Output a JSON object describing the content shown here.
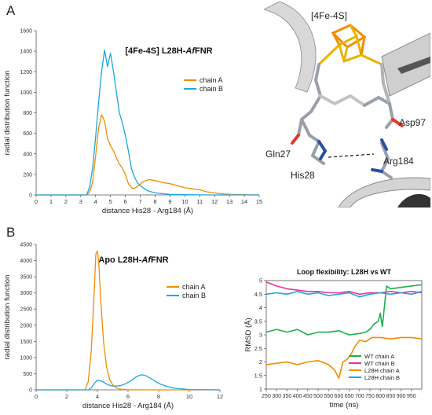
{
  "panels": {
    "a": "A",
    "b": "B"
  },
  "structure": {
    "labels": [
      "[4Fe-4S]",
      "Asp97",
      "Gln27",
      "His28",
      "Arg184"
    ]
  },
  "chart_data": [
    {
      "type": "line",
      "title_plain": "[4Fe-4S] L28H-",
      "title_italic": "Af",
      "title_end": "FNR",
      "xlabel": "distance His28 - Arg184 (Å)",
      "ylabel": "radial distribution function",
      "xlim": [
        0,
        15
      ],
      "ylim": [
        0,
        1600
      ],
      "xticks": [
        "0",
        "1",
        "2",
        "3",
        "4",
        "5",
        "6",
        "7",
        "8",
        "9",
        "10",
        "11",
        "12",
        "13",
        "14",
        "15"
      ],
      "yticks": [
        "0",
        "200",
        "400",
        "600",
        "800",
        "1000",
        "1200",
        "1400",
        "1600"
      ],
      "legend_position": "center-right",
      "series": [
        {
          "name": "chain A",
          "color": "#f28c00",
          "x": [
            0,
            3.4,
            3.6,
            3.8,
            4.0,
            4.2,
            4.4,
            4.6,
            4.8,
            5.0,
            5.2,
            5.4,
            5.6,
            5.8,
            6.0,
            6.2,
            6.5,
            6.8,
            7.2,
            7.6,
            8.0,
            8.5,
            9.0,
            9.5,
            10.0,
            10.5,
            11.0,
            11.5,
            12.0,
            12.5,
            13.0,
            13.5,
            14.0,
            14.5,
            15.0
          ],
          "y": [
            0,
            0,
            30,
            120,
            380,
            650,
            780,
            720,
            550,
            480,
            430,
            360,
            300,
            260,
            200,
            110,
            60,
            80,
            130,
            150,
            140,
            120,
            110,
            90,
            70,
            60,
            50,
            30,
            20,
            10,
            5,
            3,
            2,
            1,
            0
          ]
        },
        {
          "name": "chain B",
          "color": "#1aa7e0",
          "x": [
            0,
            3.4,
            3.6,
            3.8,
            4.0,
            4.2,
            4.4,
            4.6,
            4.8,
            5.0,
            5.2,
            5.4,
            5.6,
            5.8,
            6.0,
            6.2,
            6.4,
            6.6,
            6.8,
            7.0,
            7.5,
            8.0,
            9.0,
            10.0,
            12.0,
            15.0
          ],
          "y": [
            0,
            0,
            80,
            260,
            560,
            900,
            1200,
            1410,
            1250,
            1380,
            1200,
            1000,
            800,
            700,
            580,
            430,
            260,
            180,
            120,
            90,
            40,
            20,
            5,
            2,
            0,
            0
          ]
        }
      ]
    },
    {
      "type": "line",
      "title_plain": "Apo L28H-",
      "title_italic": "Af",
      "title_end": "FNR",
      "xlabel": "distance His28 - Arg184 (Å)",
      "ylabel": "radial distribution function",
      "xlim": [
        0,
        12
      ],
      "ylim": [
        0,
        4500
      ],
      "xticks": [
        "0",
        "2",
        "4",
        "6",
        "8",
        "10",
        "12"
      ],
      "yticks": [
        "0",
        "500",
        "1000",
        "1500",
        "2000",
        "2500",
        "3000",
        "3500",
        "4000",
        "4500"
      ],
      "legend_position": "center-right",
      "series": [
        {
          "name": "chain A",
          "color": "#f28c00",
          "x": [
            0,
            3.2,
            3.4,
            3.6,
            3.8,
            3.9,
            4.0,
            4.1,
            4.2,
            4.4,
            4.6,
            4.8,
            5.0,
            5.2,
            5.5,
            6.0,
            7.0,
            12.0
          ],
          "y": [
            0,
            0,
            250,
            1200,
            3100,
            4200,
            4300,
            3900,
            2900,
            1500,
            700,
            320,
            150,
            70,
            20,
            5,
            0,
            0
          ]
        },
        {
          "name": "chain B",
          "color": "#1aa7e0",
          "x": [
            0,
            3.4,
            3.6,
            3.8,
            4.0,
            4.2,
            4.4,
            4.6,
            4.8,
            5.0,
            5.2,
            5.5,
            5.8,
            6.0,
            6.3,
            6.6,
            6.9,
            7.2,
            7.6,
            8.0,
            8.5,
            9.0,
            10.0,
            12.0
          ],
          "y": [
            0,
            0,
            60,
            200,
            300,
            280,
            240,
            180,
            140,
            120,
            120,
            130,
            180,
            230,
            320,
            420,
            470,
            430,
            320,
            200,
            110,
            50,
            10,
            0
          ]
        }
      ]
    },
    {
      "type": "line",
      "title": "Loop flexibility: L28H vs WT",
      "xlabel": "time (ns)",
      "ylabel": "RMSD (Å)",
      "xlim": [
        250,
        1000
      ],
      "ylim": [
        1,
        5
      ],
      "xticks": [
        "250",
        "300",
        "350",
        "400",
        "450",
        "500",
        "550",
        "600",
        "650",
        "700",
        "750",
        "800",
        "850",
        "900",
        "950"
      ],
      "yticks": [
        "1",
        "1.5",
        "2",
        "2.5",
        "3",
        "3.5",
        "4",
        "4.5",
        "5"
      ],
      "legend_position": "bottom-right",
      "series": [
        {
          "name": "WT chain A",
          "color": "#1db04c",
          "x": [
            250,
            300,
            350,
            400,
            450,
            500,
            550,
            600,
            650,
            700,
            730,
            750,
            770,
            790,
            800,
            810,
            830,
            850,
            900,
            950,
            1000
          ],
          "y": [
            3.1,
            3.2,
            3.1,
            3.2,
            3.0,
            3.1,
            3.1,
            3.15,
            3.0,
            3.05,
            3.1,
            3.2,
            3.4,
            3.5,
            3.8,
            3.3,
            4.8,
            4.7,
            4.75,
            4.8,
            4.85
          ]
        },
        {
          "name": "WT chain B",
          "color": "#e8329c",
          "x": [
            250,
            300,
            350,
            400,
            450,
            500,
            550,
            600,
            650,
            700,
            750,
            800,
            850,
            900,
            950,
            1000
          ],
          "y": [
            4.95,
            4.8,
            4.7,
            4.65,
            4.6,
            4.6,
            4.55,
            4.55,
            4.6,
            4.5,
            4.55,
            4.55,
            4.6,
            4.55,
            4.6,
            4.55
          ]
        },
        {
          "name": "L28H chain A",
          "color": "#f28c00",
          "x": [
            250,
            300,
            350,
            400,
            450,
            500,
            550,
            580,
            600,
            620,
            640,
            660,
            680,
            700,
            730,
            760,
            800,
            850,
            900,
            950,
            1000
          ],
          "y": [
            1.9,
            1.95,
            2.0,
            1.9,
            2.0,
            2.05,
            1.9,
            1.7,
            1.4,
            2.0,
            2.1,
            2.3,
            2.6,
            2.8,
            2.75,
            2.9,
            2.9,
            2.85,
            2.9,
            2.9,
            2.85
          ]
        },
        {
          "name": "L28H chain B",
          "color": "#1aa7e0",
          "x": [
            250,
            300,
            350,
            400,
            450,
            500,
            550,
            600,
            650,
            700,
            750,
            800,
            850,
            900,
            950,
            1000
          ],
          "y": [
            4.5,
            4.55,
            4.5,
            4.6,
            4.5,
            4.55,
            4.45,
            4.5,
            4.55,
            4.4,
            4.5,
            4.55,
            4.5,
            4.55,
            4.5,
            4.6
          ]
        }
      ]
    }
  ]
}
